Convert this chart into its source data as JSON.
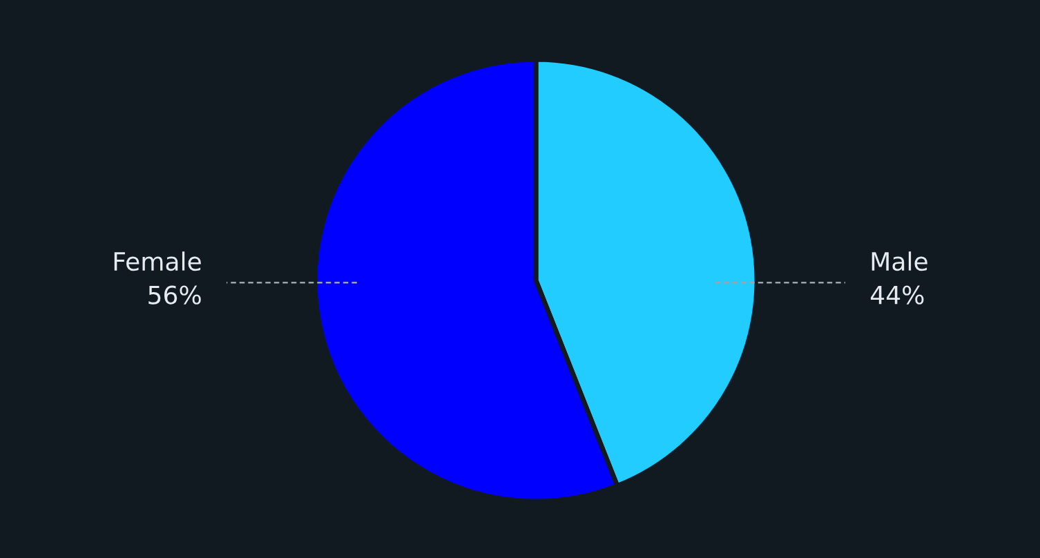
{
  "chart_data": {
    "type": "pie",
    "categories": [
      "Male",
      "Female"
    ],
    "values": [
      44,
      56
    ],
    "colors": [
      "#22ccff",
      "#0000ff"
    ],
    "value_labels": [
      "44%",
      "56%"
    ],
    "legend": false
  }
}
